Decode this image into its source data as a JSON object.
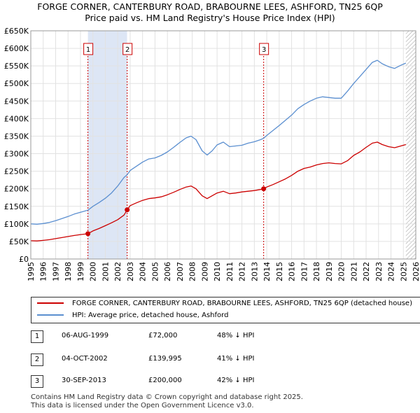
{
  "chart_data": {
    "type": "line",
    "title_line1": "FORGE CORNER, CANTERBURY ROAD, BRABOURNE LEES, ASHFORD, TN25 6QP",
    "title_line2": "Price paid vs. HM Land Registry's House Price Index (HPI)",
    "xlim": [
      1995,
      2026
    ],
    "ylim": [
      0,
      650000
    ],
    "x_ticks": [
      1995,
      1996,
      1997,
      1998,
      1999,
      2000,
      2001,
      2002,
      2003,
      2004,
      2005,
      2006,
      2007,
      2008,
      2009,
      2010,
      2011,
      2012,
      2013,
      2014,
      2015,
      2016,
      2017,
      2018,
      2019,
      2020,
      2021,
      2022,
      2023,
      2024,
      2025,
      2026
    ],
    "y_ticks": [
      {
        "value": 0,
        "label": "£0"
      },
      {
        "value": 50000,
        "label": "£50K"
      },
      {
        "value": 100000,
        "label": "£100K"
      },
      {
        "value": 150000,
        "label": "£150K"
      },
      {
        "value": 200000,
        "label": "£200K"
      },
      {
        "value": 250000,
        "label": "£250K"
      },
      {
        "value": 300000,
        "label": "£300K"
      },
      {
        "value": 350000,
        "label": "£350K"
      },
      {
        "value": 400000,
        "label": "£400K"
      },
      {
        "value": 450000,
        "label": "£450K"
      },
      {
        "value": 500000,
        "label": "£500K"
      },
      {
        "value": 550000,
        "label": "£550K"
      },
      {
        "value": 600000,
        "label": "£600K"
      },
      {
        "value": 650000,
        "label": "£650K"
      }
    ],
    "shaded_periods": [
      [
        1999.6,
        2002.75
      ]
    ],
    "future_hatch_from": 2025.2,
    "series": [
      {
        "name": "FORGE CORNER, CANTERBURY ROAD, BRABOURNE LEES, ASHFORD, TN25 6QP (detached house)",
        "color": "#cc0000",
        "points": [
          [
            1995.0,
            52000
          ],
          [
            1995.5,
            51500
          ],
          [
            1996.0,
            53000
          ],
          [
            1996.5,
            55000
          ],
          [
            1997.0,
            58000
          ],
          [
            1997.5,
            61000
          ],
          [
            1998.0,
            64000
          ],
          [
            1998.5,
            67000
          ],
          [
            1999.0,
            69500
          ],
          [
            1999.6,
            72000
          ],
          [
            2000.0,
            80000
          ],
          [
            2000.5,
            87000
          ],
          [
            2001.0,
            95000
          ],
          [
            2001.5,
            103000
          ],
          [
            2002.0,
            112000
          ],
          [
            2002.5,
            125000
          ],
          [
            2002.76,
            139995
          ],
          [
            2003.0,
            152000
          ],
          [
            2003.5,
            160000
          ],
          [
            2004.0,
            167000
          ],
          [
            2004.5,
            172000
          ],
          [
            2005.0,
            174000
          ],
          [
            2005.5,
            177000
          ],
          [
            2006.0,
            183000
          ],
          [
            2006.5,
            190000
          ],
          [
            2007.0,
            198000
          ],
          [
            2007.5,
            205000
          ],
          [
            2007.9,
            208000
          ],
          [
            2008.3,
            200000
          ],
          [
            2008.8,
            180000
          ],
          [
            2009.2,
            172000
          ],
          [
            2009.6,
            180000
          ],
          [
            2010.0,
            188000
          ],
          [
            2010.5,
            193000
          ],
          [
            2011.0,
            186000
          ],
          [
            2011.5,
            188000
          ],
          [
            2012.0,
            191000
          ],
          [
            2012.5,
            193000
          ],
          [
            2013.0,
            195000
          ],
          [
            2013.5,
            198000
          ],
          [
            2013.75,
            200000
          ],
          [
            2014.0,
            205000
          ],
          [
            2014.5,
            212000
          ],
          [
            2015.0,
            220000
          ],
          [
            2015.5,
            228000
          ],
          [
            2016.0,
            238000
          ],
          [
            2016.5,
            250000
          ],
          [
            2017.0,
            258000
          ],
          [
            2017.5,
            262000
          ],
          [
            2018.0,
            268000
          ],
          [
            2018.5,
            272000
          ],
          [
            2019.0,
            274000
          ],
          [
            2019.5,
            272000
          ],
          [
            2020.0,
            271000
          ],
          [
            2020.5,
            280000
          ],
          [
            2021.0,
            295000
          ],
          [
            2021.5,
            305000
          ],
          [
            2022.0,
            318000
          ],
          [
            2022.5,
            330000
          ],
          [
            2022.9,
            333000
          ],
          [
            2023.3,
            326000
          ],
          [
            2023.8,
            320000
          ],
          [
            2024.3,
            317000
          ],
          [
            2024.8,
            322000
          ],
          [
            2025.2,
            326000
          ]
        ]
      },
      {
        "name": "HPI: Average price, detached house, Ashford",
        "color": "#5b8fd0",
        "points": [
          [
            1995.0,
            100000
          ],
          [
            1995.5,
            99000
          ],
          [
            1996.0,
            101000
          ],
          [
            1996.5,
            104000
          ],
          [
            1997.0,
            109000
          ],
          [
            1997.5,
            115000
          ],
          [
            1998.0,
            121000
          ],
          [
            1998.5,
            128000
          ],
          [
            1999.0,
            133000
          ],
          [
            1999.6,
            139000
          ],
          [
            2000.0,
            150000
          ],
          [
            2000.5,
            161000
          ],
          [
            2001.0,
            173000
          ],
          [
            2001.5,
            188000
          ],
          [
            2002.0,
            208000
          ],
          [
            2002.5,
            232000
          ],
          [
            2002.76,
            240000
          ],
          [
            2003.0,
            252000
          ],
          [
            2003.5,
            264000
          ],
          [
            2004.0,
            276000
          ],
          [
            2004.5,
            285000
          ],
          [
            2005.0,
            288000
          ],
          [
            2005.5,
            295000
          ],
          [
            2006.0,
            305000
          ],
          [
            2006.5,
            318000
          ],
          [
            2007.0,
            332000
          ],
          [
            2007.5,
            345000
          ],
          [
            2007.9,
            350000
          ],
          [
            2008.3,
            340000
          ],
          [
            2008.8,
            308000
          ],
          [
            2009.2,
            296000
          ],
          [
            2009.6,
            308000
          ],
          [
            2010.0,
            325000
          ],
          [
            2010.5,
            333000
          ],
          [
            2011.0,
            320000
          ],
          [
            2011.5,
            322000
          ],
          [
            2012.0,
            324000
          ],
          [
            2012.5,
            330000
          ],
          [
            2013.0,
            334000
          ],
          [
            2013.5,
            340000
          ],
          [
            2013.75,
            344000
          ],
          [
            2014.0,
            352000
          ],
          [
            2014.5,
            366000
          ],
          [
            2015.0,
            380000
          ],
          [
            2015.5,
            395000
          ],
          [
            2016.0,
            410000
          ],
          [
            2016.5,
            428000
          ],
          [
            2017.0,
            440000
          ],
          [
            2017.5,
            450000
          ],
          [
            2018.0,
            458000
          ],
          [
            2018.5,
            462000
          ],
          [
            2019.0,
            460000
          ],
          [
            2019.5,
            458000
          ],
          [
            2020.0,
            458000
          ],
          [
            2020.5,
            478000
          ],
          [
            2021.0,
            500000
          ],
          [
            2021.5,
            520000
          ],
          [
            2022.0,
            540000
          ],
          [
            2022.5,
            560000
          ],
          [
            2022.9,
            566000
          ],
          [
            2023.3,
            556000
          ],
          [
            2023.8,
            548000
          ],
          [
            2024.3,
            543000
          ],
          [
            2024.8,
            552000
          ],
          [
            2025.2,
            558000
          ]
        ]
      }
    ],
    "sales": [
      {
        "id": "1",
        "x": 1999.6,
        "price": 72000
      },
      {
        "id": "2",
        "x": 2002.76,
        "price": 139995
      },
      {
        "id": "3",
        "x": 2013.75,
        "price": 200000
      }
    ]
  },
  "legend": {
    "property_label": "FORGE CORNER, CANTERBURY ROAD, BRABOURNE LEES, ASHFORD, TN25 6QP (detached house)",
    "hpi_label": "HPI: Average price, detached house, Ashford",
    "property_color": "#cc0000",
    "hpi_color": "#5b8fd0"
  },
  "table": [
    {
      "num": "1",
      "date": "06-AUG-1999",
      "price": "£72,000",
      "hpi": "48% ↓ HPI"
    },
    {
      "num": "2",
      "date": "04-OCT-2002",
      "price": "£139,995",
      "hpi": "41% ↓ HPI"
    },
    {
      "num": "3",
      "date": "30-SEP-2013",
      "price": "£200,000",
      "hpi": "42% ↓ HPI"
    }
  ],
  "footer": {
    "line1": "Contains HM Land Registry data © Crown copyright and database right 2025.",
    "line2": "This data is licensed under the Open Government Licence v3.0."
  }
}
